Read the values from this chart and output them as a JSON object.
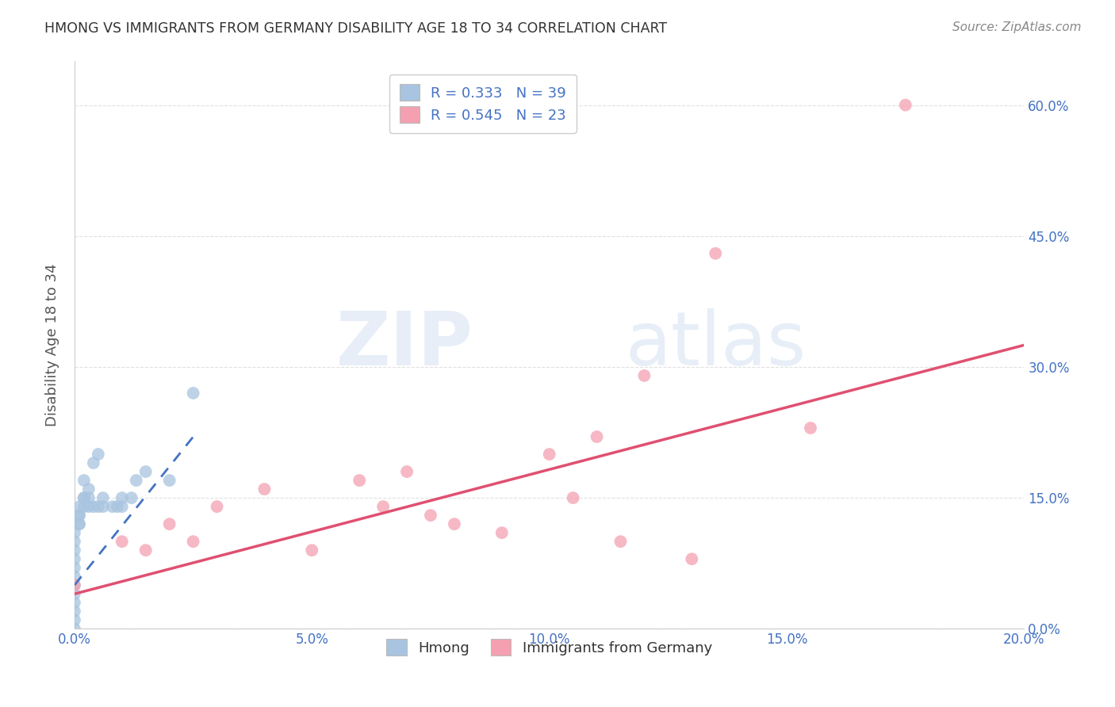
{
  "title": "HMONG VS IMMIGRANTS FROM GERMANY DISABILITY AGE 18 TO 34 CORRELATION CHART",
  "source": "Source: ZipAtlas.com",
  "ylabel": "Disability Age 18 to 34",
  "xmin": 0.0,
  "xmax": 0.2,
  "ymin": 0.0,
  "ymax": 0.65,
  "xticks": [
    0.0,
    0.05,
    0.1,
    0.15,
    0.2
  ],
  "yticks": [
    0.0,
    0.15,
    0.3,
    0.45,
    0.6
  ],
  "hmong_color": "#a8c4e0",
  "germany_color": "#f4a0b0",
  "hmong_line_color": "#4472c4",
  "germany_line_color": "#e05070",
  "hmong_R": 0.333,
  "hmong_N": 39,
  "germany_R": 0.545,
  "germany_N": 23,
  "background_color": "#ffffff",
  "grid_color": "#e0e0e0",
  "watermark_zip": "ZIP",
  "watermark_atlas": "atlas",
  "hmong_x": [
    0.0,
    0.0,
    0.0,
    0.0,
    0.0,
    0.0,
    0.0,
    0.0,
    0.0,
    0.0,
    0.0,
    0.0,
    0.001,
    0.001,
    0.001,
    0.001,
    0.001,
    0.002,
    0.002,
    0.002,
    0.002,
    0.003,
    0.003,
    0.003,
    0.004,
    0.004,
    0.005,
    0.005,
    0.006,
    0.006,
    0.008,
    0.009,
    0.01,
    0.01,
    0.012,
    0.013,
    0.015,
    0.02,
    0.025
  ],
  "hmong_y": [
    0.0,
    0.01,
    0.02,
    0.03,
    0.04,
    0.05,
    0.06,
    0.07,
    0.08,
    0.09,
    0.1,
    0.11,
    0.12,
    0.12,
    0.13,
    0.13,
    0.14,
    0.14,
    0.15,
    0.15,
    0.17,
    0.14,
    0.15,
    0.16,
    0.14,
    0.19,
    0.14,
    0.2,
    0.14,
    0.15,
    0.14,
    0.14,
    0.14,
    0.15,
    0.15,
    0.17,
    0.18,
    0.17,
    0.27
  ],
  "germany_x": [
    0.0,
    0.01,
    0.015,
    0.02,
    0.025,
    0.03,
    0.04,
    0.05,
    0.06,
    0.065,
    0.07,
    0.075,
    0.08,
    0.09,
    0.1,
    0.105,
    0.11,
    0.115,
    0.12,
    0.13,
    0.135,
    0.155,
    0.175
  ],
  "germany_y": [
    0.05,
    0.1,
    0.09,
    0.12,
    0.1,
    0.14,
    0.16,
    0.09,
    0.17,
    0.14,
    0.18,
    0.13,
    0.12,
    0.11,
    0.2,
    0.15,
    0.22,
    0.1,
    0.29,
    0.08,
    0.43,
    0.23,
    0.6
  ],
  "hmong_line_xrange": [
    0.0,
    0.025
  ],
  "hmong_line_ystart": 0.05,
  "hmong_line_yend": 0.22,
  "germany_line_xrange": [
    0.0,
    0.2
  ],
  "germany_line_ystart": 0.04,
  "germany_line_yend": 0.325
}
